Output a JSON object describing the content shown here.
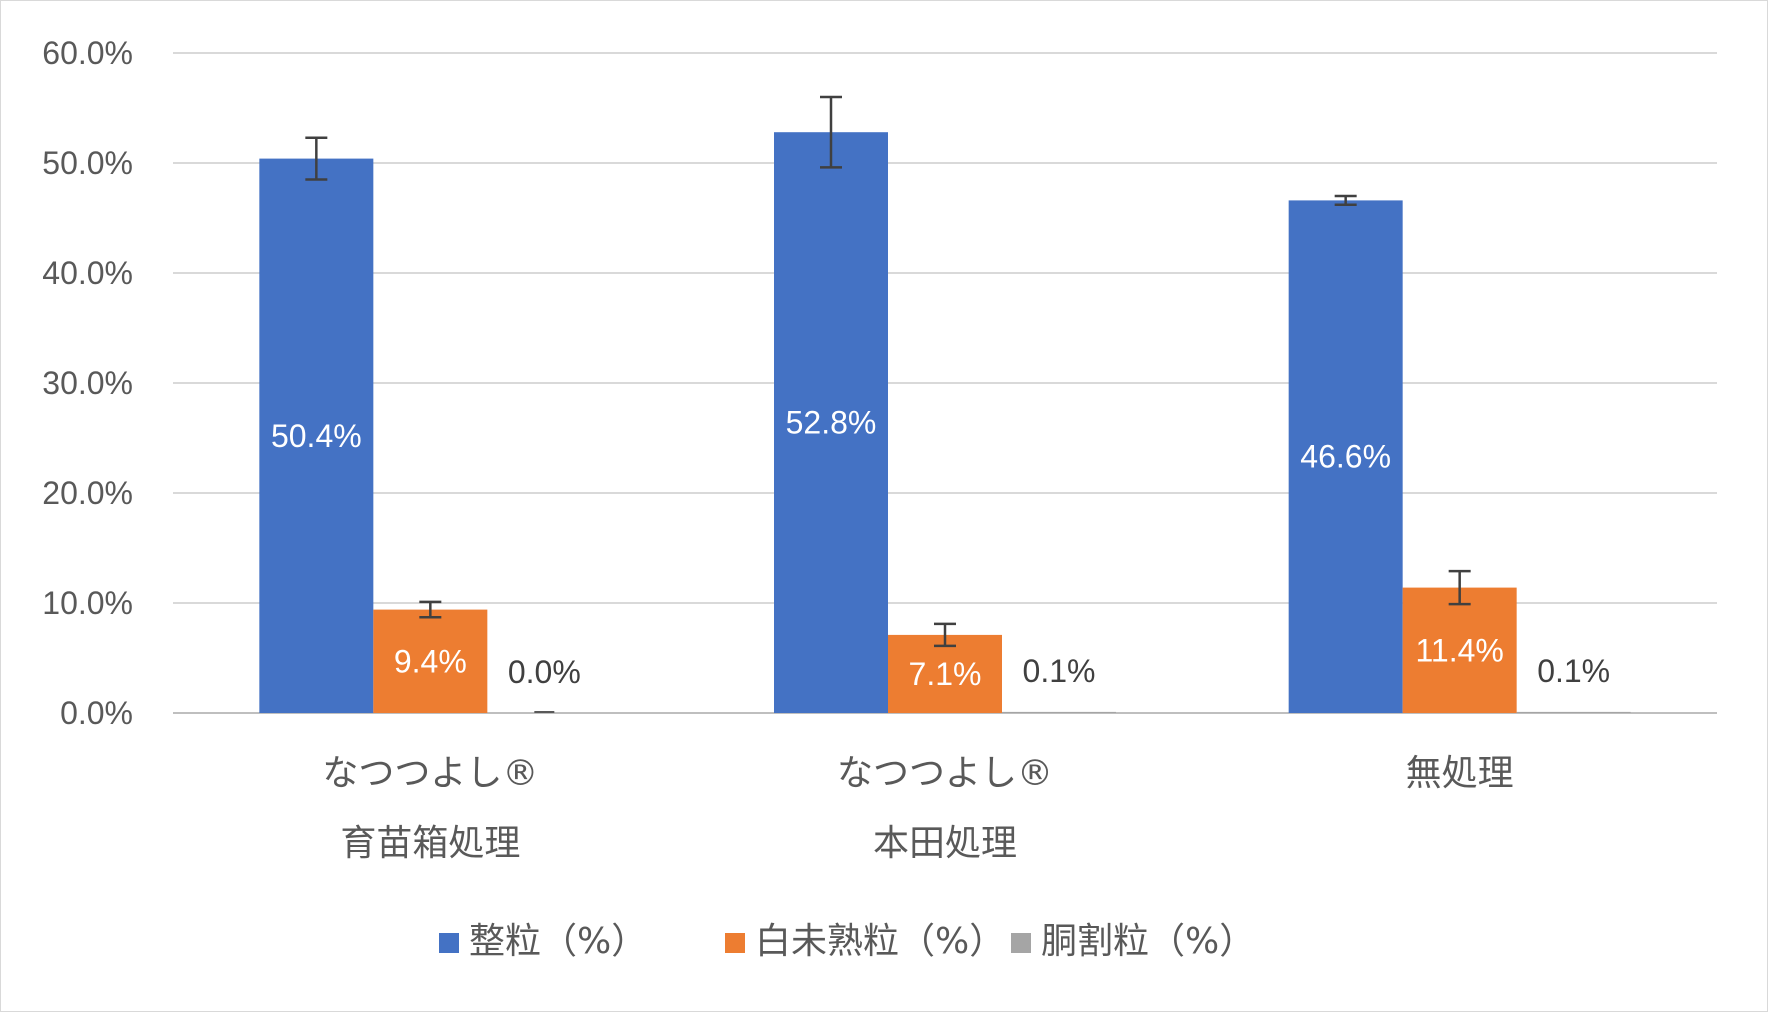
{
  "chart_data": {
    "type": "bar",
    "title": "",
    "xlabel": "",
    "ylabel": "",
    "ylim": [
      0,
      60
    ],
    "yticks": [
      "0.0%",
      "10.0%",
      "20.0%",
      "30.0%",
      "40.0%",
      "50.0%",
      "60.0%"
    ],
    "grid": true,
    "legend_position": "bottom",
    "categories": [
      {
        "line1": "なつつよし®",
        "line2": "育苗箱処理"
      },
      {
        "line1": "なつつよし®",
        "line2": "本田処理"
      },
      {
        "line1": "無処理",
        "line2": ""
      }
    ],
    "series": [
      {
        "name": "整粒（%）",
        "color": "#4472C4",
        "values": [
          50.4,
          52.8,
          46.6
        ],
        "errors": [
          1.9,
          3.2,
          0.4
        ],
        "labels": [
          "50.4%",
          "52.8%",
          "46.6%"
        ],
        "label_style": "inside"
      },
      {
        "name": "白未熟粒（%）",
        "color": "#ED7D31",
        "values": [
          9.4,
          7.1,
          11.4
        ],
        "errors": [
          0.7,
          1.0,
          1.5
        ],
        "labels": [
          "9.4%",
          "7.1%",
          "11.4%"
        ],
        "label_style": "inside"
      },
      {
        "name": "胴割粒（%）",
        "color": "#A5A5A5",
        "values": [
          0.0,
          0.1,
          0.1
        ],
        "errors": [
          0,
          0,
          0
        ],
        "labels": [
          "0.0%",
          "0.1%",
          "0.1%"
        ],
        "label_style": "outside"
      }
    ]
  }
}
